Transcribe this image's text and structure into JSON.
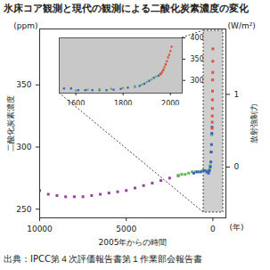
{
  "chart_data": [
    {
      "type": "scatter",
      "title": "氷床コア観測と現代の観測による二酸化炭素濃度の変化",
      "source": "出典：IPCC第４次評価報告書第１作業部会報告書",
      "xlabel": "2005年からの時間",
      "xunit": "(年)",
      "ylabel": "二酸化炭素濃度",
      "yunit": "(ppm)",
      "y2label": "放射強制力",
      "y2unit": "(W/m²)",
      "xlim": [
        10000,
        -750
      ],
      "xticks": [
        10000,
        5000,
        0
      ],
      "ylim": [
        243,
        395
      ],
      "yticks": [
        250,
        300,
        350
      ],
      "y2lim": [
        -0.7,
        1.9
      ],
      "y2ticks": [
        0,
        1
      ],
      "marker": "square",
      "series": [
        {
          "color": "#9b3fa0",
          "x": [
            10000,
            9500,
            9000,
            8500,
            8000,
            7500,
            7000,
            6500,
            6000,
            5500,
            5000,
            4500,
            4000,
            3500,
            3000,
            2500,
            2000
          ],
          "values": [
            265,
            262,
            261,
            260,
            260,
            260,
            261,
            262,
            263,
            264,
            265,
            267,
            269,
            271,
            273,
            275,
            277
          ]
        },
        {
          "color": "#5cb848",
          "x": [
            2000,
            1800,
            1600,
            1400,
            1200,
            1000,
            800,
            600,
            400,
            300,
            200,
            150,
            100,
            60
          ],
          "values": [
            277,
            278,
            278,
            279,
            280,
            280,
            280,
            281,
            281,
            280,
            282,
            285,
            296,
            310
          ]
        },
        {
          "color": "#3a5fc8",
          "x": [
            1100,
            900,
            700,
            500,
            350,
            250,
            200,
            150,
            120,
            100,
            80,
            60,
            50
          ],
          "values": [
            279,
            280,
            280,
            281,
            280,
            279,
            281,
            284,
            288,
            296,
            302,
            311,
            316
          ]
        },
        {
          "color": "#e8503a",
          "x": [
            47,
            40,
            35,
            30,
            25,
            20,
            15,
            10,
            5,
            0
          ],
          "values": [
            315,
            320,
            325,
            331,
            338,
            345,
            354,
            360,
            369,
            379
          ]
        }
      ]
    },
    {
      "type": "scatter",
      "xlim": [
        1530,
        2050
      ],
      "xticks": [
        1600,
        1800,
        2000
      ],
      "ylim": [
        270,
        400
      ],
      "yticks": [
        300,
        350,
        400
      ],
      "marker": "square",
      "series": [
        {
          "color": "#3a5fc8",
          "x": [
            1550,
            1580,
            1610,
            1640,
            1670,
            1700,
            1730,
            1760,
            1790,
            1820,
            1850,
            1870,
            1890,
            1910,
            1930,
            1950,
            1960
          ],
          "values": [
            281,
            281,
            277,
            277,
            277,
            277,
            277,
            278,
            280,
            283,
            285,
            287,
            292,
            299,
            306,
            311,
            316
          ]
        },
        {
          "color": "#5cb848",
          "x": [
            1600,
            1650,
            1700,
            1750,
            1800,
            1850,
            1880,
            1900,
            1920,
            1940,
            1955,
            1970,
            1980
          ],
          "values": [
            276,
            278,
            279,
            280,
            282,
            286,
            290,
            296,
            302,
            309,
            314,
            324,
            337
          ]
        },
        {
          "color": "#e8503a",
          "x": [
            1958,
            1965,
            1970,
            1975,
            1980,
            1985,
            1990,
            1995,
            2000,
            2005
          ],
          "values": [
            315,
            320,
            325,
            331,
            338,
            345,
            354,
            360,
            369,
            379
          ]
        }
      ]
    }
  ]
}
